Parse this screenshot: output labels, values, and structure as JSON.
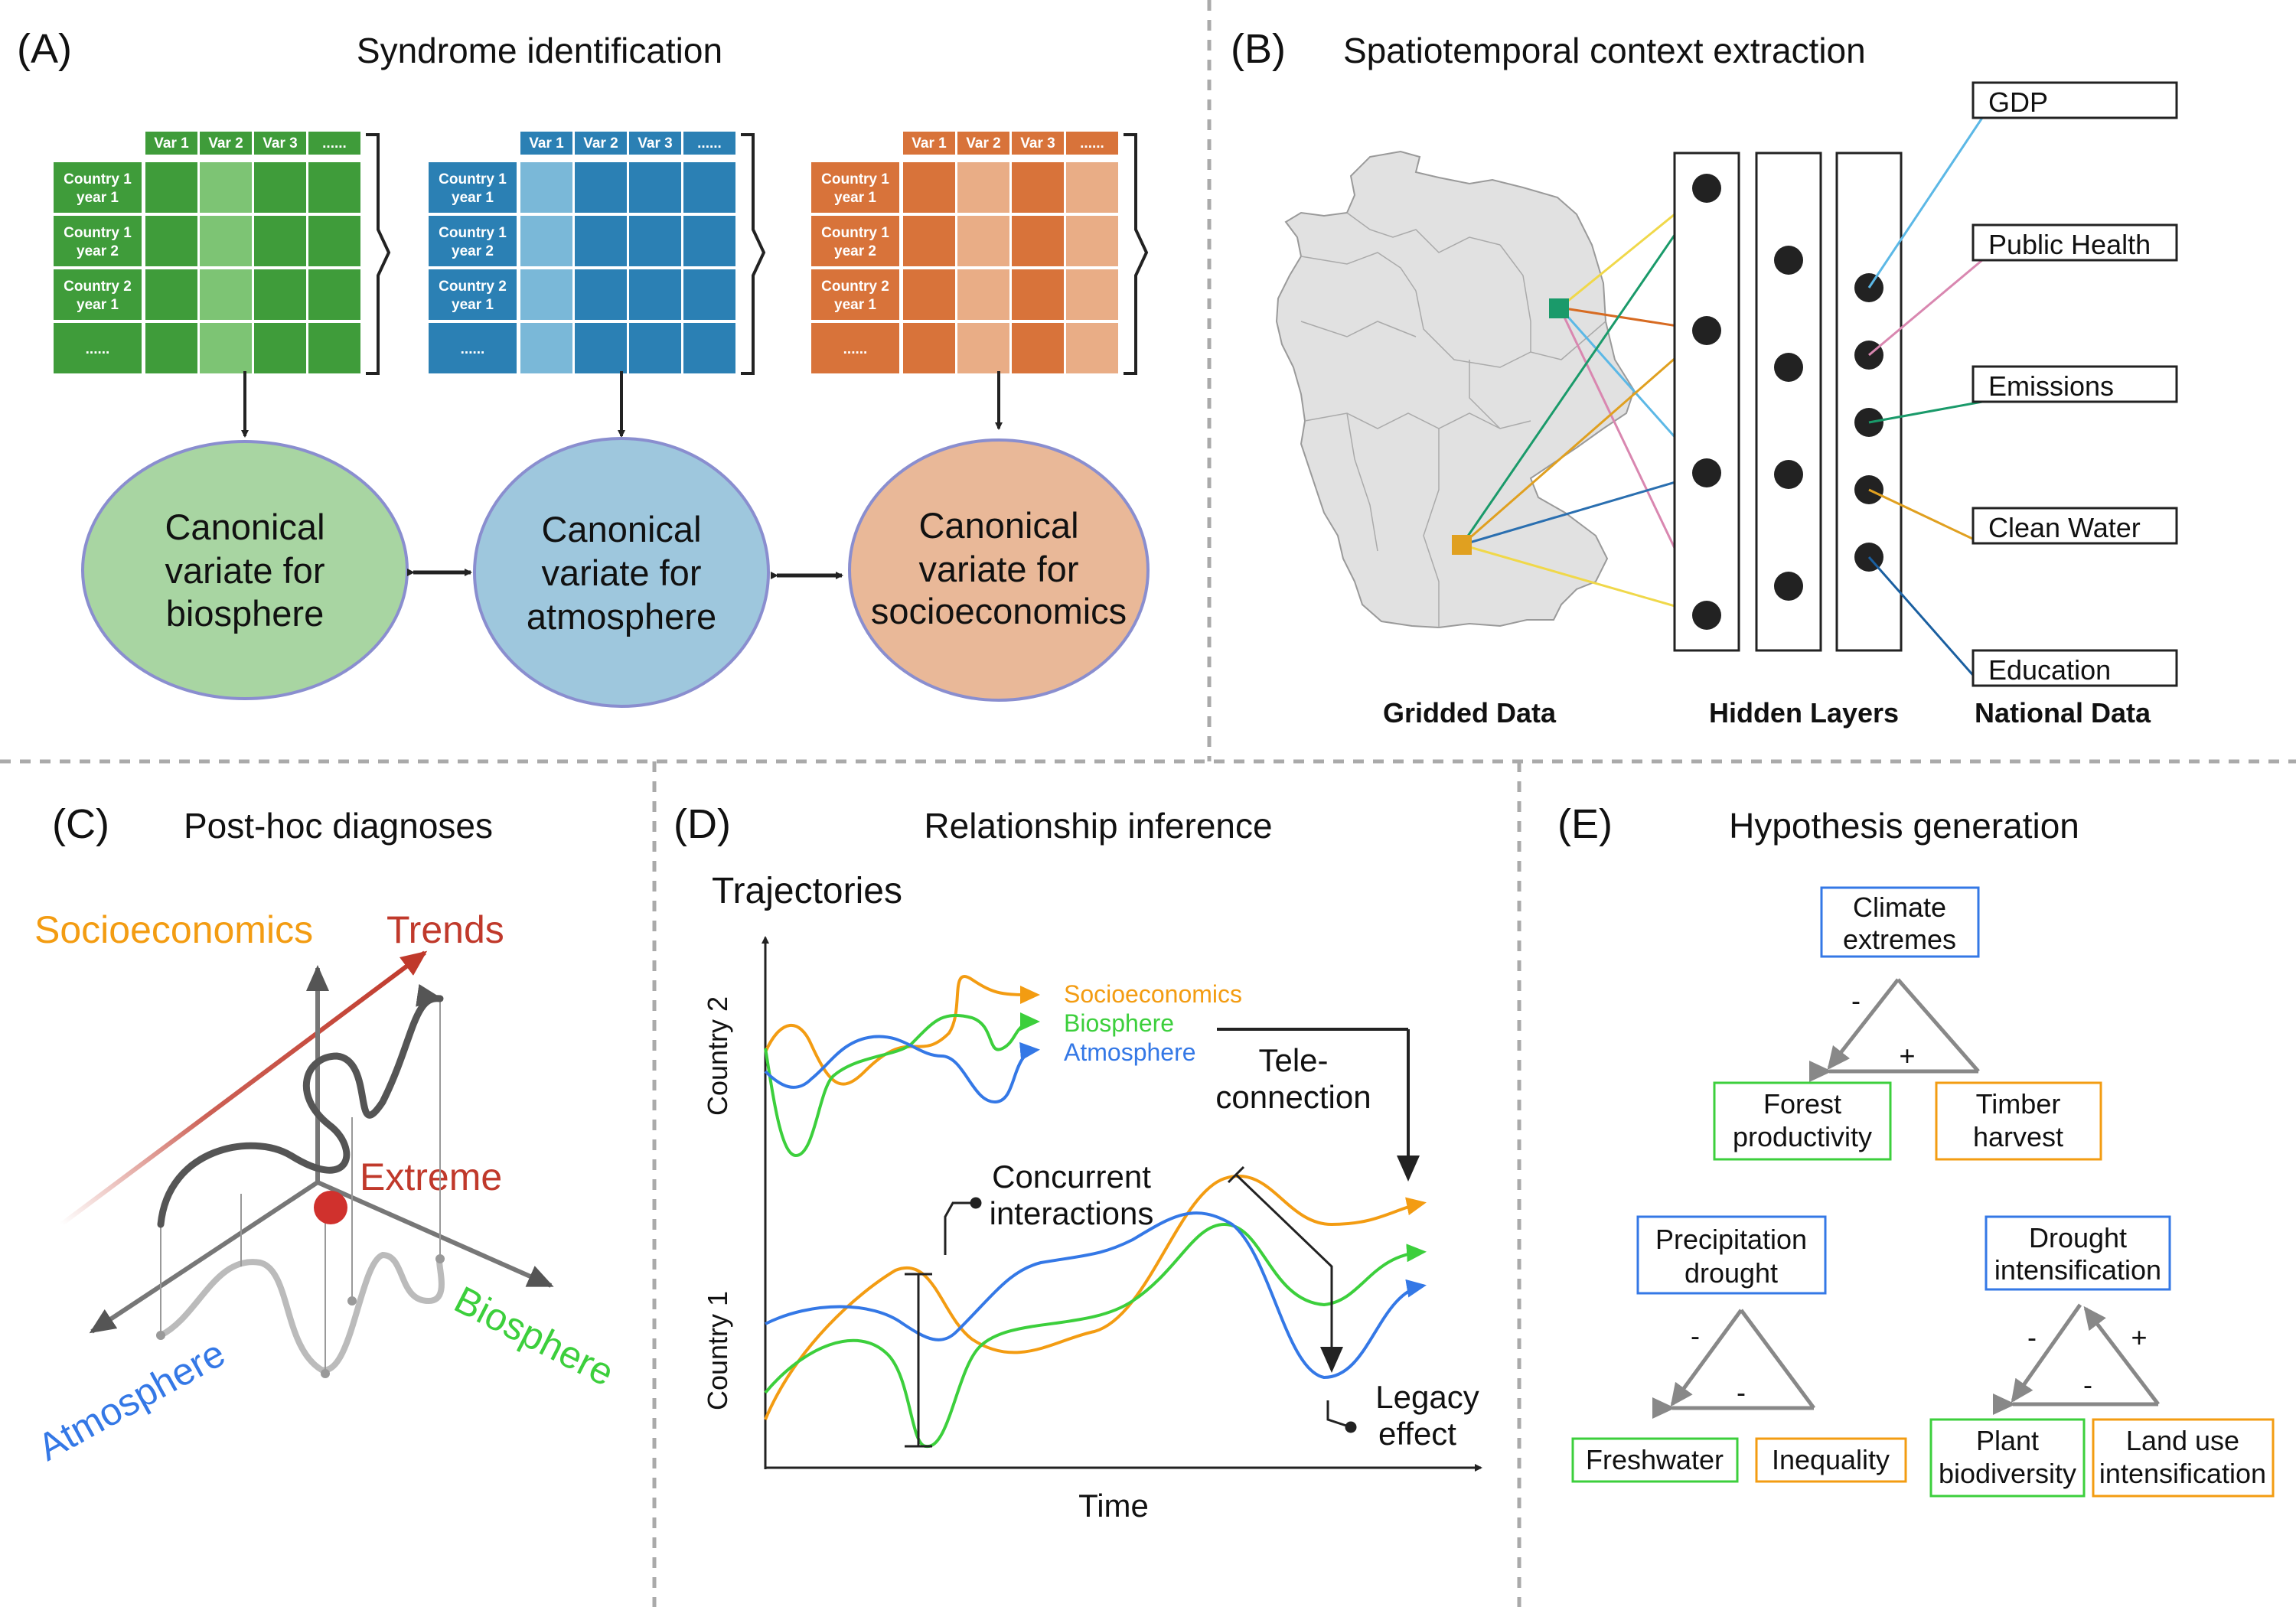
{
  "panel_a": {
    "letter": "(A)",
    "title": "Syndrome identification",
    "var_headers": [
      "Var 1",
      "Var 2",
      "Var 3",
      "......"
    ],
    "row_headers": [
      [
        "Country 1",
        "year 1"
      ],
      [
        "Country 1",
        "year 2"
      ],
      [
        "Country 2",
        "year 1"
      ],
      [
        "......",
        ""
      ]
    ],
    "ellipse_bio": [
      "Canonical",
      "variate for",
      "biosphere"
    ],
    "ellipse_atm": [
      "Canonical",
      "variate for",
      "atmosphere"
    ],
    "ellipse_soc": [
      "Canonical",
      "variate for",
      "socioeconomics"
    ],
    "colors": {
      "bio": "#3f9c3a",
      "atm": "#2b80b4",
      "soc": "#d8733a"
    }
  },
  "panel_b": {
    "letter": "(B)",
    "title": "Spatiotemporal context extraction",
    "national_labels": [
      "GDP",
      "Public Health",
      "Emissions",
      "Clean Water",
      "Education"
    ],
    "label_gridded": "Gridded Data",
    "label_hidden": "Hidden Layers",
    "label_national": "National Data"
  },
  "panel_c": {
    "letter": "(C)",
    "title": "Post-hoc diagnoses",
    "label_socio": "Socioeconomics",
    "label_trends": "Trends",
    "label_extreme": "Extreme",
    "label_atmo": "Atmosphere",
    "label_bio": "Biosphere"
  },
  "panel_d": {
    "letter": "(D)",
    "title": "Relationship inference",
    "trajectories": "Trajectories",
    "country2": "Country 2",
    "country1": "Country 1",
    "time": "Time",
    "legend": [
      "Socioeconomics",
      "Biosphere",
      "Atmosphere"
    ],
    "teleconnection": [
      "Tele-",
      "connection"
    ],
    "concurrent": [
      "Concurrent",
      "interactions"
    ],
    "legacy": [
      "Legacy",
      "effect"
    ]
  },
  "panel_e": {
    "letter": "(E)",
    "title": "Hypothesis generation",
    "t1": {
      "top": [
        "Climate",
        "extremes"
      ],
      "left": [
        "Forest",
        "productivity"
      ],
      "right": [
        "Timber",
        "harvest"
      ],
      "sign_left": "-",
      "sign_bottom": "+"
    },
    "t2": {
      "top": [
        "Precipitation",
        "drought"
      ],
      "left": [
        "Freshwater"
      ],
      "right": [
        "Inequality"
      ],
      "sign_left": "-",
      "sign_bottom": "-"
    },
    "t3": {
      "top": [
        "Drought",
        "intensification"
      ],
      "left": [
        "Plant",
        "biodiversity"
      ],
      "right": [
        "Land use",
        "intensification"
      ],
      "sign_left": "-",
      "sign_right": "+",
      "sign_bottom": "-"
    }
  }
}
